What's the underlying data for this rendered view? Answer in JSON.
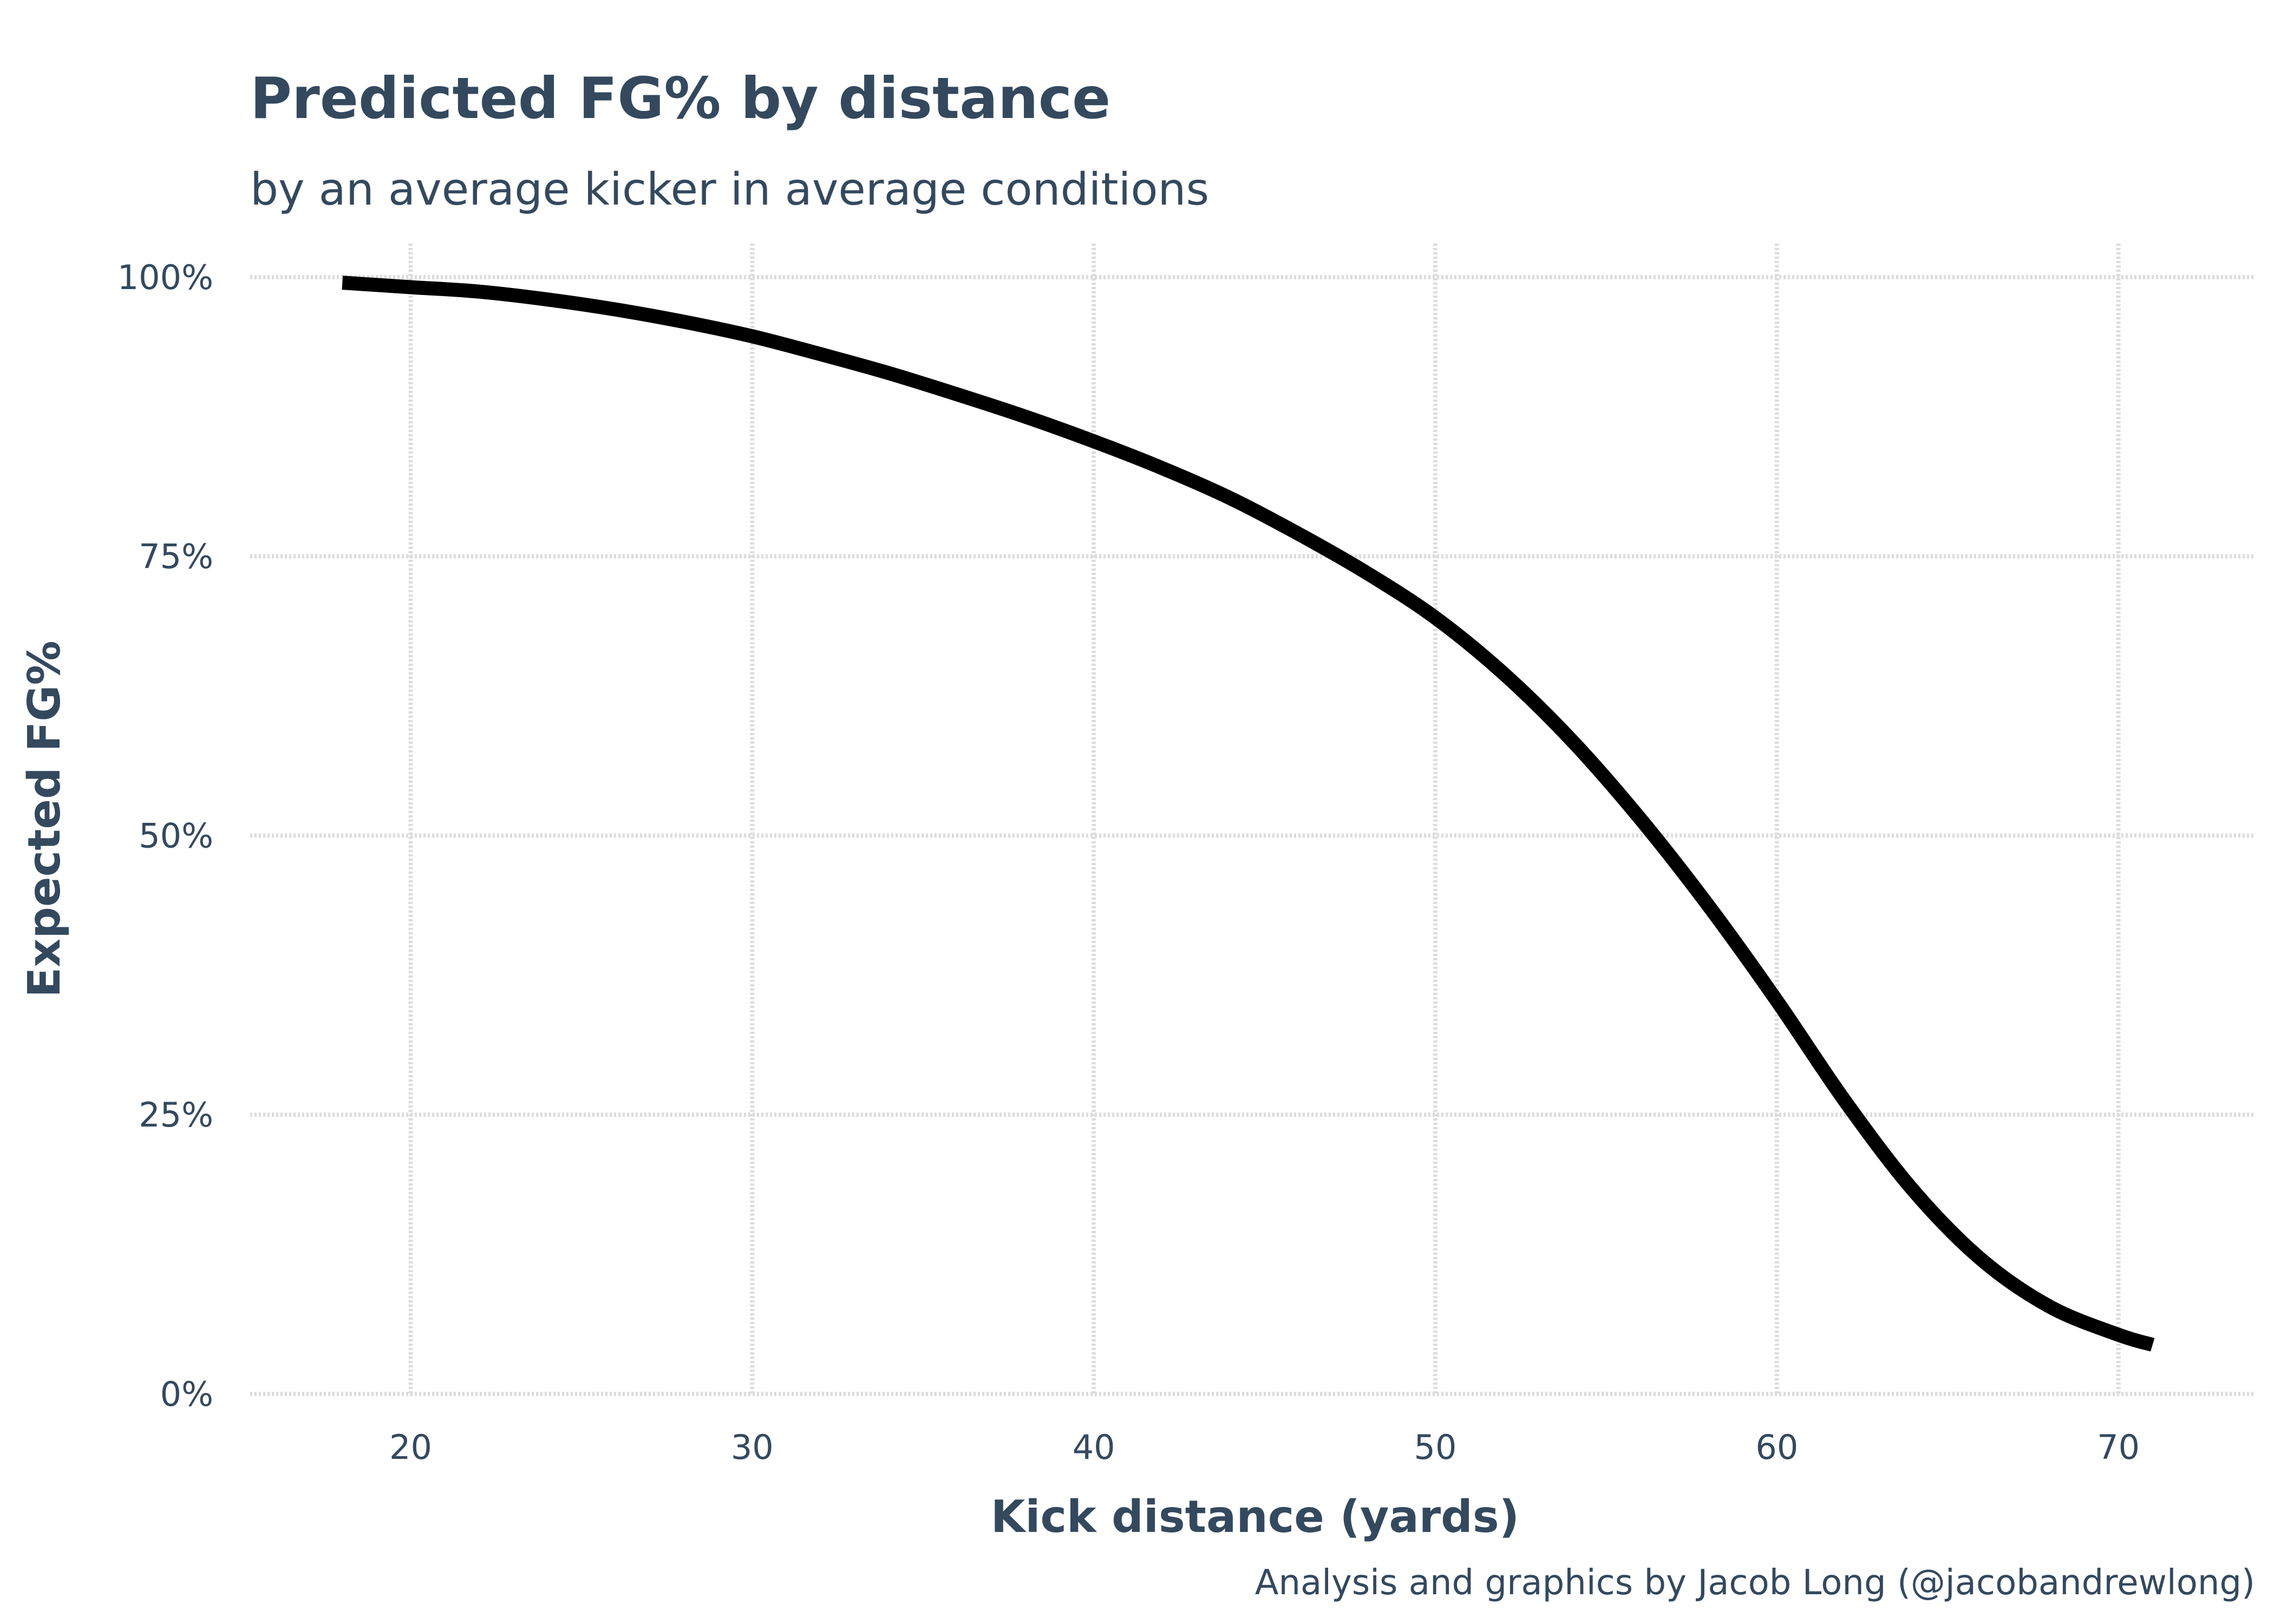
{
  "chart_data": {
    "type": "line",
    "title": "Predicted FG% by distance",
    "subtitle": "by an average kicker in average conditions",
    "xlabel": "Kick distance (yards)",
    "ylabel": "Expected FG%",
    "caption": "Analysis and graphics by Jacob Long (@jacobandrewlong)",
    "xlim": [
      15.3,
      74.0
    ],
    "ylim": [
      0,
      1.03
    ],
    "x_ticks": [
      20,
      30,
      40,
      50,
      60,
      70
    ],
    "x_tick_labels": [
      "20",
      "30",
      "40",
      "50",
      "60",
      "70"
    ],
    "y_ticks": [
      0,
      0.25,
      0.5,
      0.75,
      1.0
    ],
    "y_tick_labels": [
      "0%",
      "25%",
      "50%",
      "75%",
      "100%"
    ],
    "grid": true,
    "line_color": "#000000",
    "series": [
      {
        "x": [
          18,
          20,
          22,
          24,
          26,
          28,
          30,
          32,
          34,
          36,
          38,
          40,
          42,
          44,
          46,
          48,
          50,
          52,
          54,
          56,
          58,
          60,
          62,
          64,
          66,
          68,
          70,
          71
        ],
        "y": [
          0.995,
          0.991,
          0.987,
          0.98,
          0.971,
          0.96,
          0.947,
          0.931,
          0.914,
          0.895,
          0.875,
          0.853,
          0.829,
          0.802,
          0.77,
          0.735,
          0.695,
          0.645,
          0.585,
          0.515,
          0.437,
          0.352,
          0.262,
          0.182,
          0.12,
          0.078,
          0.053,
          0.044
        ]
      }
    ]
  }
}
